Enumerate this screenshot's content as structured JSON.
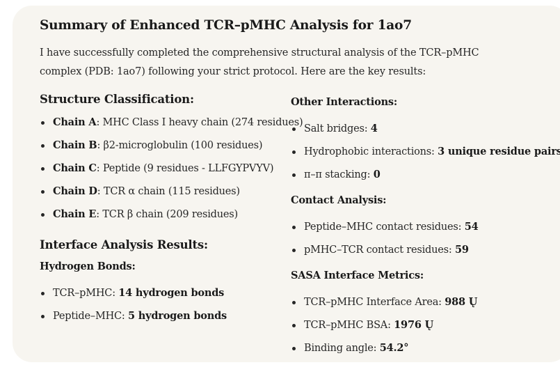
{
  "title": "Summary of Enhanced TCR–pMHC Analysis for 1ao7",
  "intro": {
    "line1": "I have successfully completed the comprehensive structural analysis of the TCR–pMHC",
    "line2": "complex (PDB: 1ao7) following your strict protocol. Here are the key results:"
  },
  "structure": {
    "heading": "Structure Classification:",
    "items": [
      {
        "bold": "Chain A",
        "text": ": MHC Class I heavy chain (274 residues)"
      },
      {
        "bold": "Chain B",
        "text": ": β2-microglobulin (100 residues)"
      },
      {
        "bold": "Chain C",
        "text": ": Peptide (9 residues - LLFGYPVYV)"
      },
      {
        "bold": "Chain D",
        "text": ": TCR α chain (115 residues)"
      },
      {
        "bold": "Chain E",
        "text": ": TCR β chain (209 residues)"
      }
    ]
  },
  "interface": {
    "heading": "Interface Analysis Results:",
    "hbonds_heading": "Hydrogen Bonds:",
    "hbonds": [
      {
        "text": "TCR–pMHC: ",
        "bold": "14 hydrogen bonds"
      },
      {
        "text": "Peptide–MHC: ",
        "bold": "5 hydrogen bonds"
      }
    ]
  },
  "other": {
    "heading": "Other Interactions:",
    "items": [
      {
        "text": "Salt bridges: ",
        "bold": "4"
      },
      {
        "text": "Hydrophobic interactions: ",
        "bold": "3 unique residue pairs"
      },
      {
        "text": "π–π stacking: ",
        "bold": "0"
      }
    ]
  },
  "contact": {
    "heading": "Contact Analysis:",
    "items": [
      {
        "text": "Peptide–MHC contact residues: ",
        "bold": "54"
      },
      {
        "text": "pMHC–TCR contact residues: ",
        "bold": "59"
      }
    ]
  },
  "sasa": {
    "heading": "SASA Interface Metrics:",
    "items": [
      {
        "text": "TCR–pMHC Interface Area: ",
        "bold": "988 Ų"
      },
      {
        "text": "TCR–pMHC BSA: ",
        "bold": "1976 Ų"
      },
      {
        "text": "Binding angle: ",
        "bold": "54.2°"
      }
    ]
  }
}
